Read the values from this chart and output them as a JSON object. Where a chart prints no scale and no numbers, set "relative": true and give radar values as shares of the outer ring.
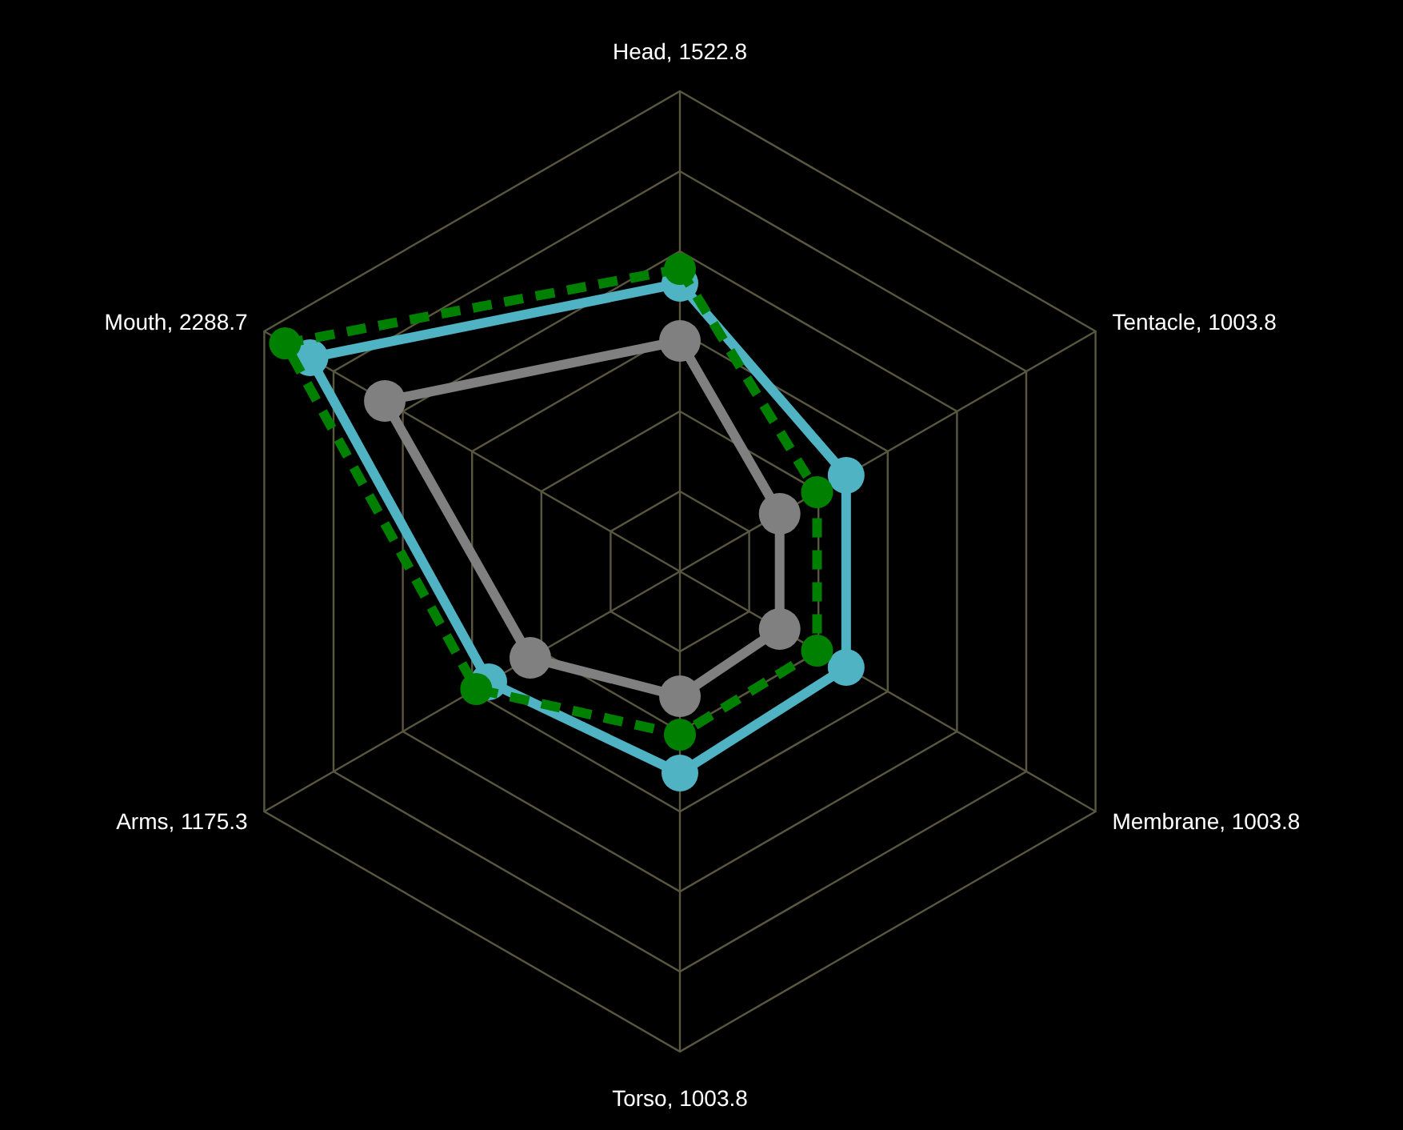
{
  "chart_data": {
    "type": "radar",
    "categories": [
      "Head, 1522.8",
      "Tentacle, 1003.8",
      "Membrane, 1003.8",
      "Torso, 1003.8",
      "Arms, 1175.3",
      "Mouth, 2288.7"
    ],
    "relative": true,
    "grid": true,
    "marker": "circle",
    "series": [
      {
        "color": "#808080",
        "values": [
          0.48,
          0.24,
          0.24,
          0.26,
          0.36,
          0.71
        ],
        "line_style": "solid"
      },
      {
        "color": "#4fb3c4",
        "values": [
          0.6,
          0.4,
          0.4,
          0.42,
          0.46,
          0.89
        ],
        "line_style": "solid"
      },
      {
        "color": "#008000",
        "values": [
          0.63,
          0.33,
          0.33,
          0.34,
          0.49,
          0.95
        ],
        "line_style": "dashed"
      }
    ]
  }
}
